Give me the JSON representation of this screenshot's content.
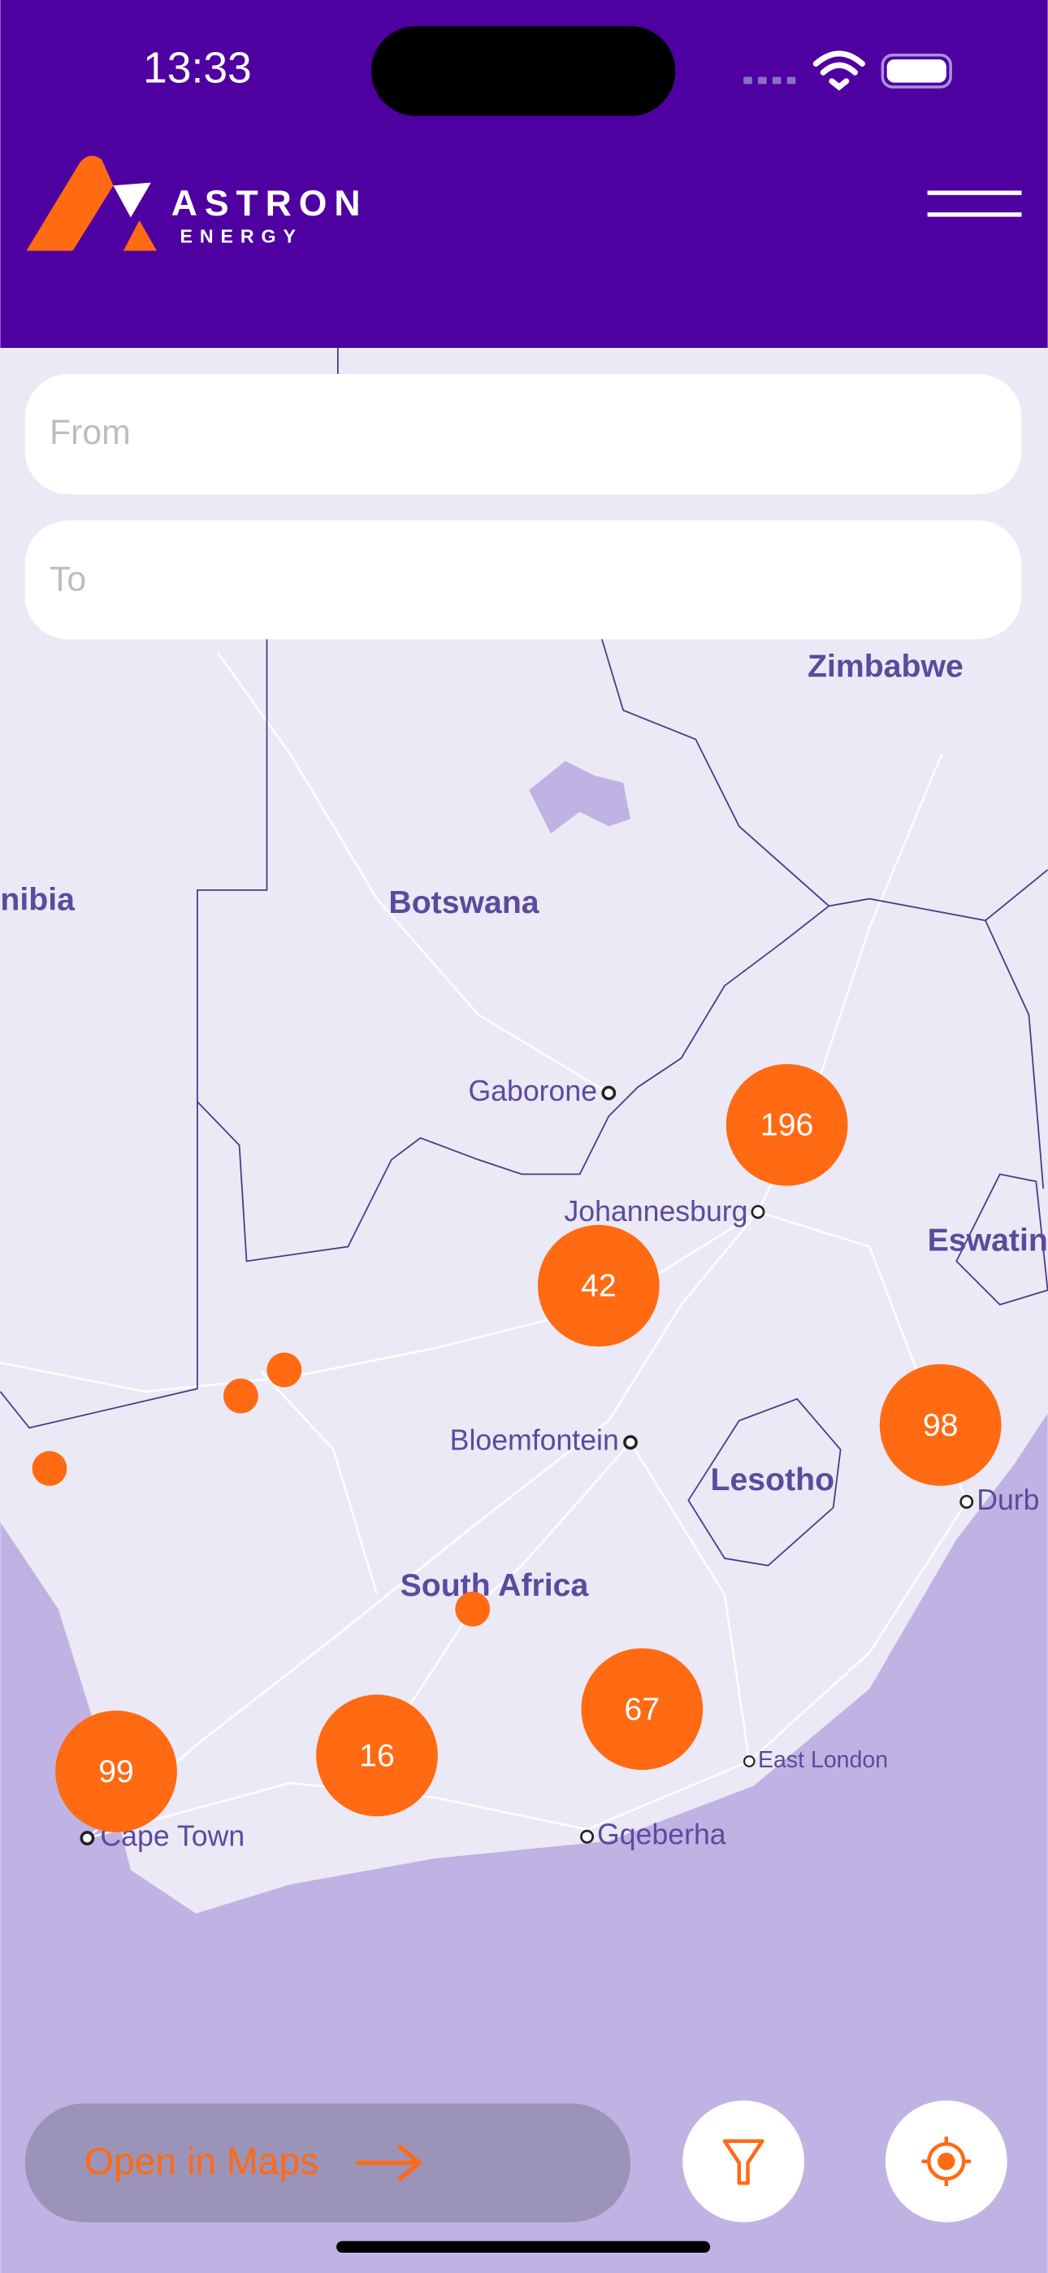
{
  "status_bar": {
    "time": "13:33"
  },
  "header": {
    "brand": "ASTRON",
    "sub_brand": "ENERGY"
  },
  "search": {
    "from_placeholder": "From",
    "to_placeholder": "To"
  },
  "map": {
    "labels": [
      "Zimbabwe",
      "Botswana",
      "nibia",
      "Gaborone",
      "Johannesburg",
      "Eswatin",
      "Bloemfontein",
      "Lesotho",
      "Durb",
      "South Africa",
      "East London",
      "Gqeberha",
      "Cape Town"
    ],
    "clusters": [
      196,
      42,
      98,
      67,
      16,
      99
    ]
  },
  "footer": {
    "open_maps": "Open in Maps"
  }
}
